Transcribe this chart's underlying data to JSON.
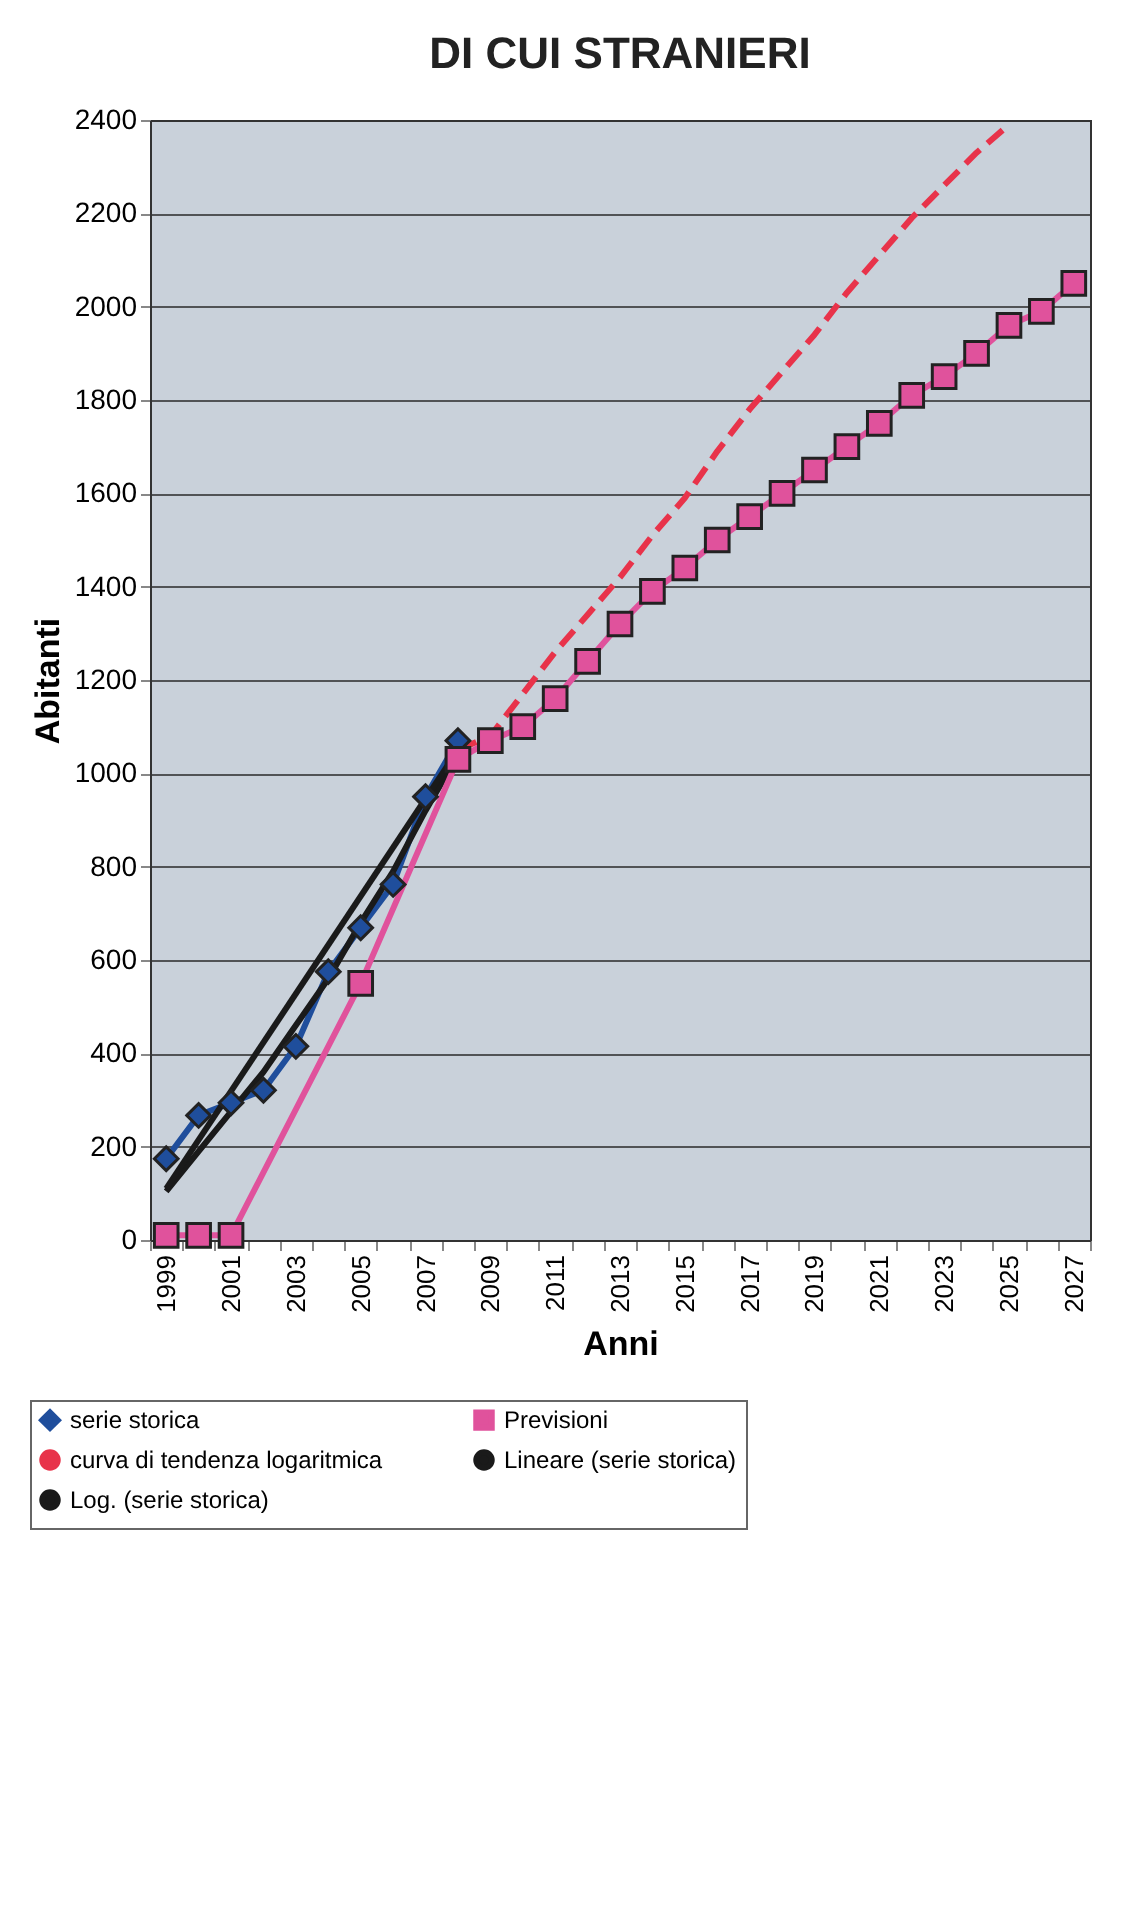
{
  "chart_data": {
    "type": "line",
    "title": "DI CUI STRANIERI",
    "xlabel": "Anni",
    "ylabel": "Abitanti",
    "categories": [
      "1999",
      null,
      "2001",
      null,
      "2003",
      null,
      "2005",
      null,
      "2007",
      null,
      "2009",
      null,
      "2011",
      null,
      "2013",
      null,
      "2015",
      null,
      "2017",
      null,
      "2019",
      null,
      "2021",
      null,
      "2023",
      null,
      "2025",
      null,
      "2027"
    ],
    "series": [
      {
        "name": "serie storica",
        "color": "#1f4e9c",
        "marker": "diamond",
        "values": [
          174,
          267,
          294,
          321,
          415,
          575,
          669,
          762,
          950,
          1070,
          null,
          null,
          null,
          null,
          null,
          null,
          null,
          null,
          null,
          null,
          null,
          null,
          null,
          null,
          null,
          null,
          null,
          null,
          null
        ]
      },
      {
        "name": "curva di tendenza logaritmica",
        "color": "#e8334a",
        "marker": "none",
        "line_style": "dashed",
        "values": [
          null,
          null,
          null,
          null,
          null,
          null,
          null,
          null,
          null,
          1050,
          1080,
          1170,
          1260,
          1340,
          1420,
          1510,
          1590,
          1690,
          1780,
          1860,
          1940,
          2030,
          2110,
          2190,
          2260,
          2330,
          2390,
          null,
          null
        ]
      },
      {
        "name": "Log. (serie storica)",
        "color": "#1a1a1a",
        "marker": "none",
        "values": [
          104,
          190,
          275,
          360,
          460,
          560,
          680,
          790,
          920,
          1040,
          null,
          null,
          null,
          null,
          null,
          null,
          null,
          null,
          null,
          null,
          null,
          null,
          null,
          null,
          null,
          null,
          null,
          null,
          null
        ]
      },
      {
        "name": "Previsioni",
        "color": "#e0529c",
        "marker": "square",
        "values": [
          10,
          10,
          10,
          null,
          null,
          null,
          550,
          null,
          null,
          1030,
          1070,
          1100,
          1160,
          1240,
          1320,
          1390,
          1440,
          1500,
          1550,
          1600,
          1650,
          1700,
          1750,
          1810,
          1850,
          1900,
          1960,
          1990,
          2050
        ]
      },
      {
        "name": "Lineare (serie storica)",
        "color": "#1a1a1a",
        "marker": "none",
        "values": [
          110,
          null,
          null,
          null,
          null,
          null,
          null,
          null,
          null,
          1050,
          null,
          null,
          null,
          null,
          null,
          null,
          null,
          null,
          null,
          null,
          null,
          null,
          null,
          null,
          null,
          null,
          null,
          null,
          null
        ]
      }
    ],
    "ylim": [
      0,
      2400
    ],
    "yticks": [
      0,
      200,
      400,
      600,
      800,
      1000,
      1200,
      1400,
      1600,
      1800,
      2000,
      2200,
      2400
    ],
    "grid": "y",
    "legend": "bottom"
  }
}
